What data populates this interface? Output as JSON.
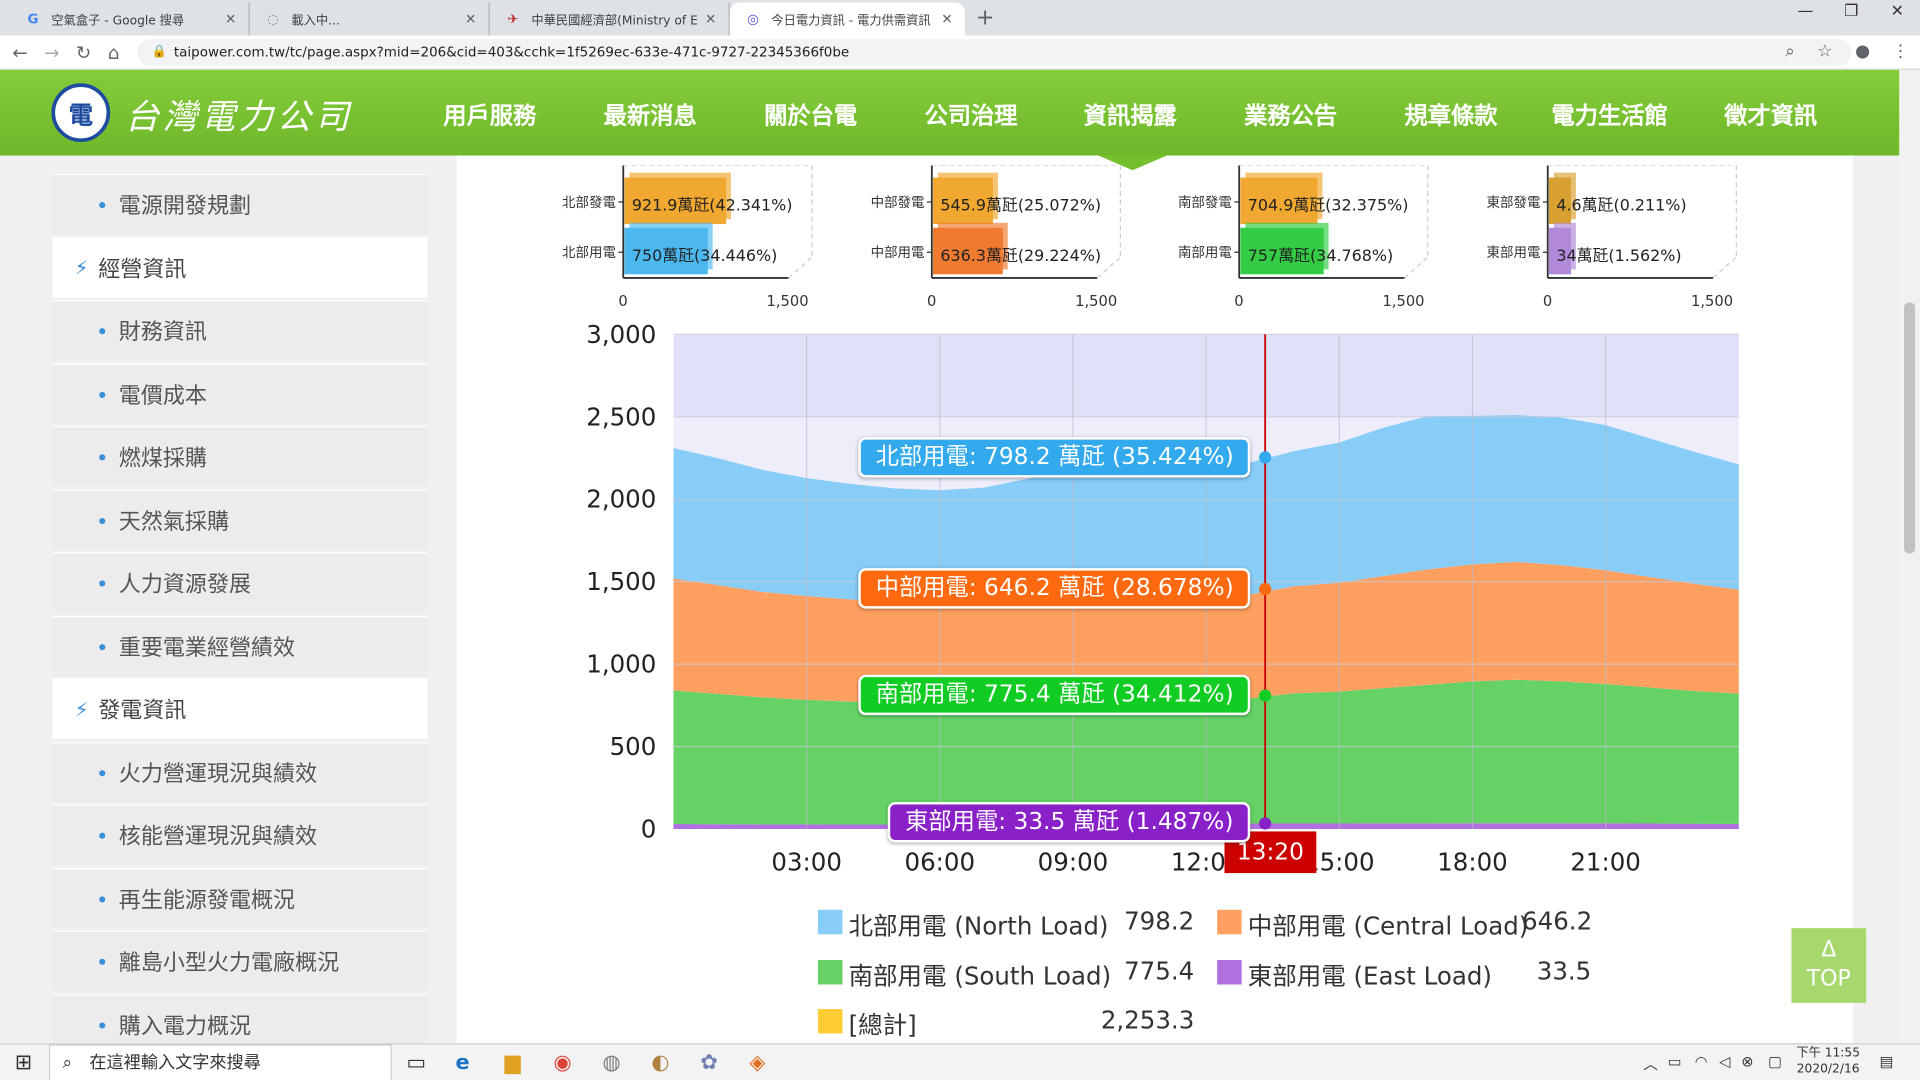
{
  "browser": {
    "tabs": [
      {
        "title": "空氣盒子 - Google 搜尋",
        "icon": "google-icon"
      },
      {
        "title": "載入中...",
        "icon": "loading-icon"
      },
      {
        "title": "中華民國經濟部(Ministry of Eco",
        "icon": "moea-icon"
      },
      {
        "title": "今日電力資訊 - 電力供需資訊 - 台",
        "icon": "taipower-icon"
      }
    ],
    "url": "taipower.com.tw/tc/page.aspx?mid=206&cid=403&cchk=1f5269ec-633e-471c-9727-22345366f0be"
  },
  "header": {
    "logo_text": "台灣電力公司",
    "menu": [
      "用戶服務",
      "最新消息",
      "關於台電",
      "公司治理",
      "資訊揭露",
      "業務公告",
      "規章條款",
      "電力生活館",
      "徵才資訊"
    ],
    "active_menu": "資訊揭露"
  },
  "sidebar": {
    "items": [
      {
        "label": "電源開發規劃",
        "type": "sub"
      },
      {
        "label": "經營資訊",
        "type": "cat"
      },
      {
        "label": "財務資訊",
        "type": "sub"
      },
      {
        "label": "電價成本",
        "type": "sub"
      },
      {
        "label": "燃煤採購",
        "type": "sub"
      },
      {
        "label": "天然氣採購",
        "type": "sub"
      },
      {
        "label": "人力資源發展",
        "type": "sub"
      },
      {
        "label": "重要電業經營績效",
        "type": "sub"
      },
      {
        "label": "發電資訊",
        "type": "cat"
      },
      {
        "label": "火力營運現況與績效",
        "type": "sub"
      },
      {
        "label": "核能營運現況與績效",
        "type": "sub"
      },
      {
        "label": "再生能源發電概況",
        "type": "sub"
      },
      {
        "label": "離島小型火力電廠概況",
        "type": "sub"
      },
      {
        "label": "購入電力概況",
        "type": "sub"
      }
    ]
  },
  "mini_charts": [
    {
      "gen_label": "北部發電",
      "load_label": "北部用電",
      "gen_value": "921.9萬瓩(42.341%)",
      "load_value": "750萬瓩(34.446%)",
      "gen": 921.9,
      "load": 750,
      "gen_color": "#f0a830",
      "load_color": "#4cb8f0"
    },
    {
      "gen_label": "中部發電",
      "load_label": "中部用電",
      "gen_value": "545.9萬瓩(25.072%)",
      "load_value": "636.3萬瓩(29.224%)",
      "gen": 545.9,
      "load": 636.3,
      "gen_color": "#f0a830",
      "load_color": "#f07a30"
    },
    {
      "gen_label": "南部發電",
      "load_label": "南部用電",
      "gen_value": "704.9萬瓩(32.375%)",
      "load_value": "757萬瓩(34.768%)",
      "gen": 704.9,
      "load": 757,
      "gen_color": "#f0a830",
      "load_color": "#33cc44"
    },
    {
      "gen_label": "東部發電",
      "load_label": "東部用電",
      "gen_value": "4.6萬瓩(0.211%)",
      "load_value": "34萬瓩(1.562%)",
      "gen": 4.6,
      "load": 34,
      "gen_color": "#d8a030",
      "load_color": "#b08ad8"
    }
  ],
  "mini_axis": {
    "ticks": [
      "0",
      "1,500"
    ],
    "max": 1500
  },
  "chart_data": {
    "type": "area",
    "stacked": true,
    "x_ticks": [
      "03:00",
      "06:00",
      "09:00",
      "12:00",
      "15:00",
      "18:00",
      "21:00"
    ],
    "y_ticks": [
      "3,000",
      "2,500",
      "2,000",
      "1,500",
      "1,000",
      "500",
      "0"
    ],
    "ylim": [
      0,
      3000
    ],
    "x_hours": [
      0,
      1,
      2,
      3,
      4,
      5,
      6,
      7,
      8,
      9,
      10,
      11,
      12,
      13,
      14,
      15,
      16,
      17,
      18,
      19,
      20,
      21,
      22,
      23,
      24
    ],
    "series": [
      {
        "name": "東部用電 (East Load)",
        "color": "#b070e0",
        "values": [
          30,
          29,
          28,
          28,
          27,
          27,
          27,
          28,
          30,
          32,
          33,
          34,
          34,
          33,
          33,
          33,
          34,
          34,
          35,
          35,
          35,
          34,
          33,
          32,
          31
        ]
      },
      {
        "name": "南部用電 (South Load)",
        "color": "#66d266",
        "values": [
          810,
          790,
          770,
          755,
          745,
          738,
          735,
          740,
          755,
          770,
          785,
          795,
          770,
          760,
          790,
          800,
          820,
          840,
          860,
          870,
          860,
          845,
          825,
          805,
          790
        ]
      },
      {
        "name": "中部用電 (Central Load)",
        "color": "#ffa060",
        "values": [
          680,
          660,
          640,
          630,
          620,
          612,
          608,
          612,
          625,
          640,
          650,
          660,
          640,
          630,
          650,
          660,
          680,
          700,
          710,
          715,
          705,
          690,
          670,
          650,
          630
        ]
      },
      {
        "name": "北部用電 (North Load)",
        "color": "#88ccf8",
        "values": [
          790,
          770,
          740,
          715,
          700,
          688,
          684,
          690,
          715,
          745,
          770,
          790,
          790,
          800,
          820,
          850,
          900,
          930,
          900,
          890,
          895,
          880,
          840,
          800,
          760
        ]
      }
    ],
    "crosshair": "13:20",
    "crosshair_hour": 13.33,
    "tooltips": [
      {
        "text": "北部用電: 798.2 萬瓩 (35.424%)",
        "color": "#33aaee",
        "value": 2253.3
      },
      {
        "text": "中部用電: 646.2 萬瓩 (28.678%)",
        "color": "#ff6a10",
        "value": 1455.1
      },
      {
        "text": "南部用電: 775.4 萬瓩 (34.412%)",
        "color": "#11cc22",
        "value": 808.9
      },
      {
        "text": "東部用電: 33.5 萬瓩 (1.487%)",
        "color": "#8a20c8",
        "value": 33.5
      }
    ],
    "legend": [
      {
        "label": "北部用電 (North Load)",
        "value": "798.2",
        "color": "#88ccf8"
      },
      {
        "label": "中部用電 (Central Load)",
        "value": "646.2",
        "color": "#ffa060"
      },
      {
        "label": "南部用電 (South Load)",
        "value": "775.4",
        "color": "#66d266"
      },
      {
        "label": "東部用電 (East Load)",
        "value": "33.5",
        "color": "#b070e0"
      },
      {
        "label": "[總計]",
        "value": "2,253.3",
        "color": "#ffcc33"
      }
    ]
  },
  "top_button": {
    "arrow": "Δ",
    "label": "TOP"
  },
  "taskbar": {
    "search_placeholder": "在這裡輸入文字來搜尋",
    "time": "下午 11:55",
    "date": "2020/2/16"
  }
}
